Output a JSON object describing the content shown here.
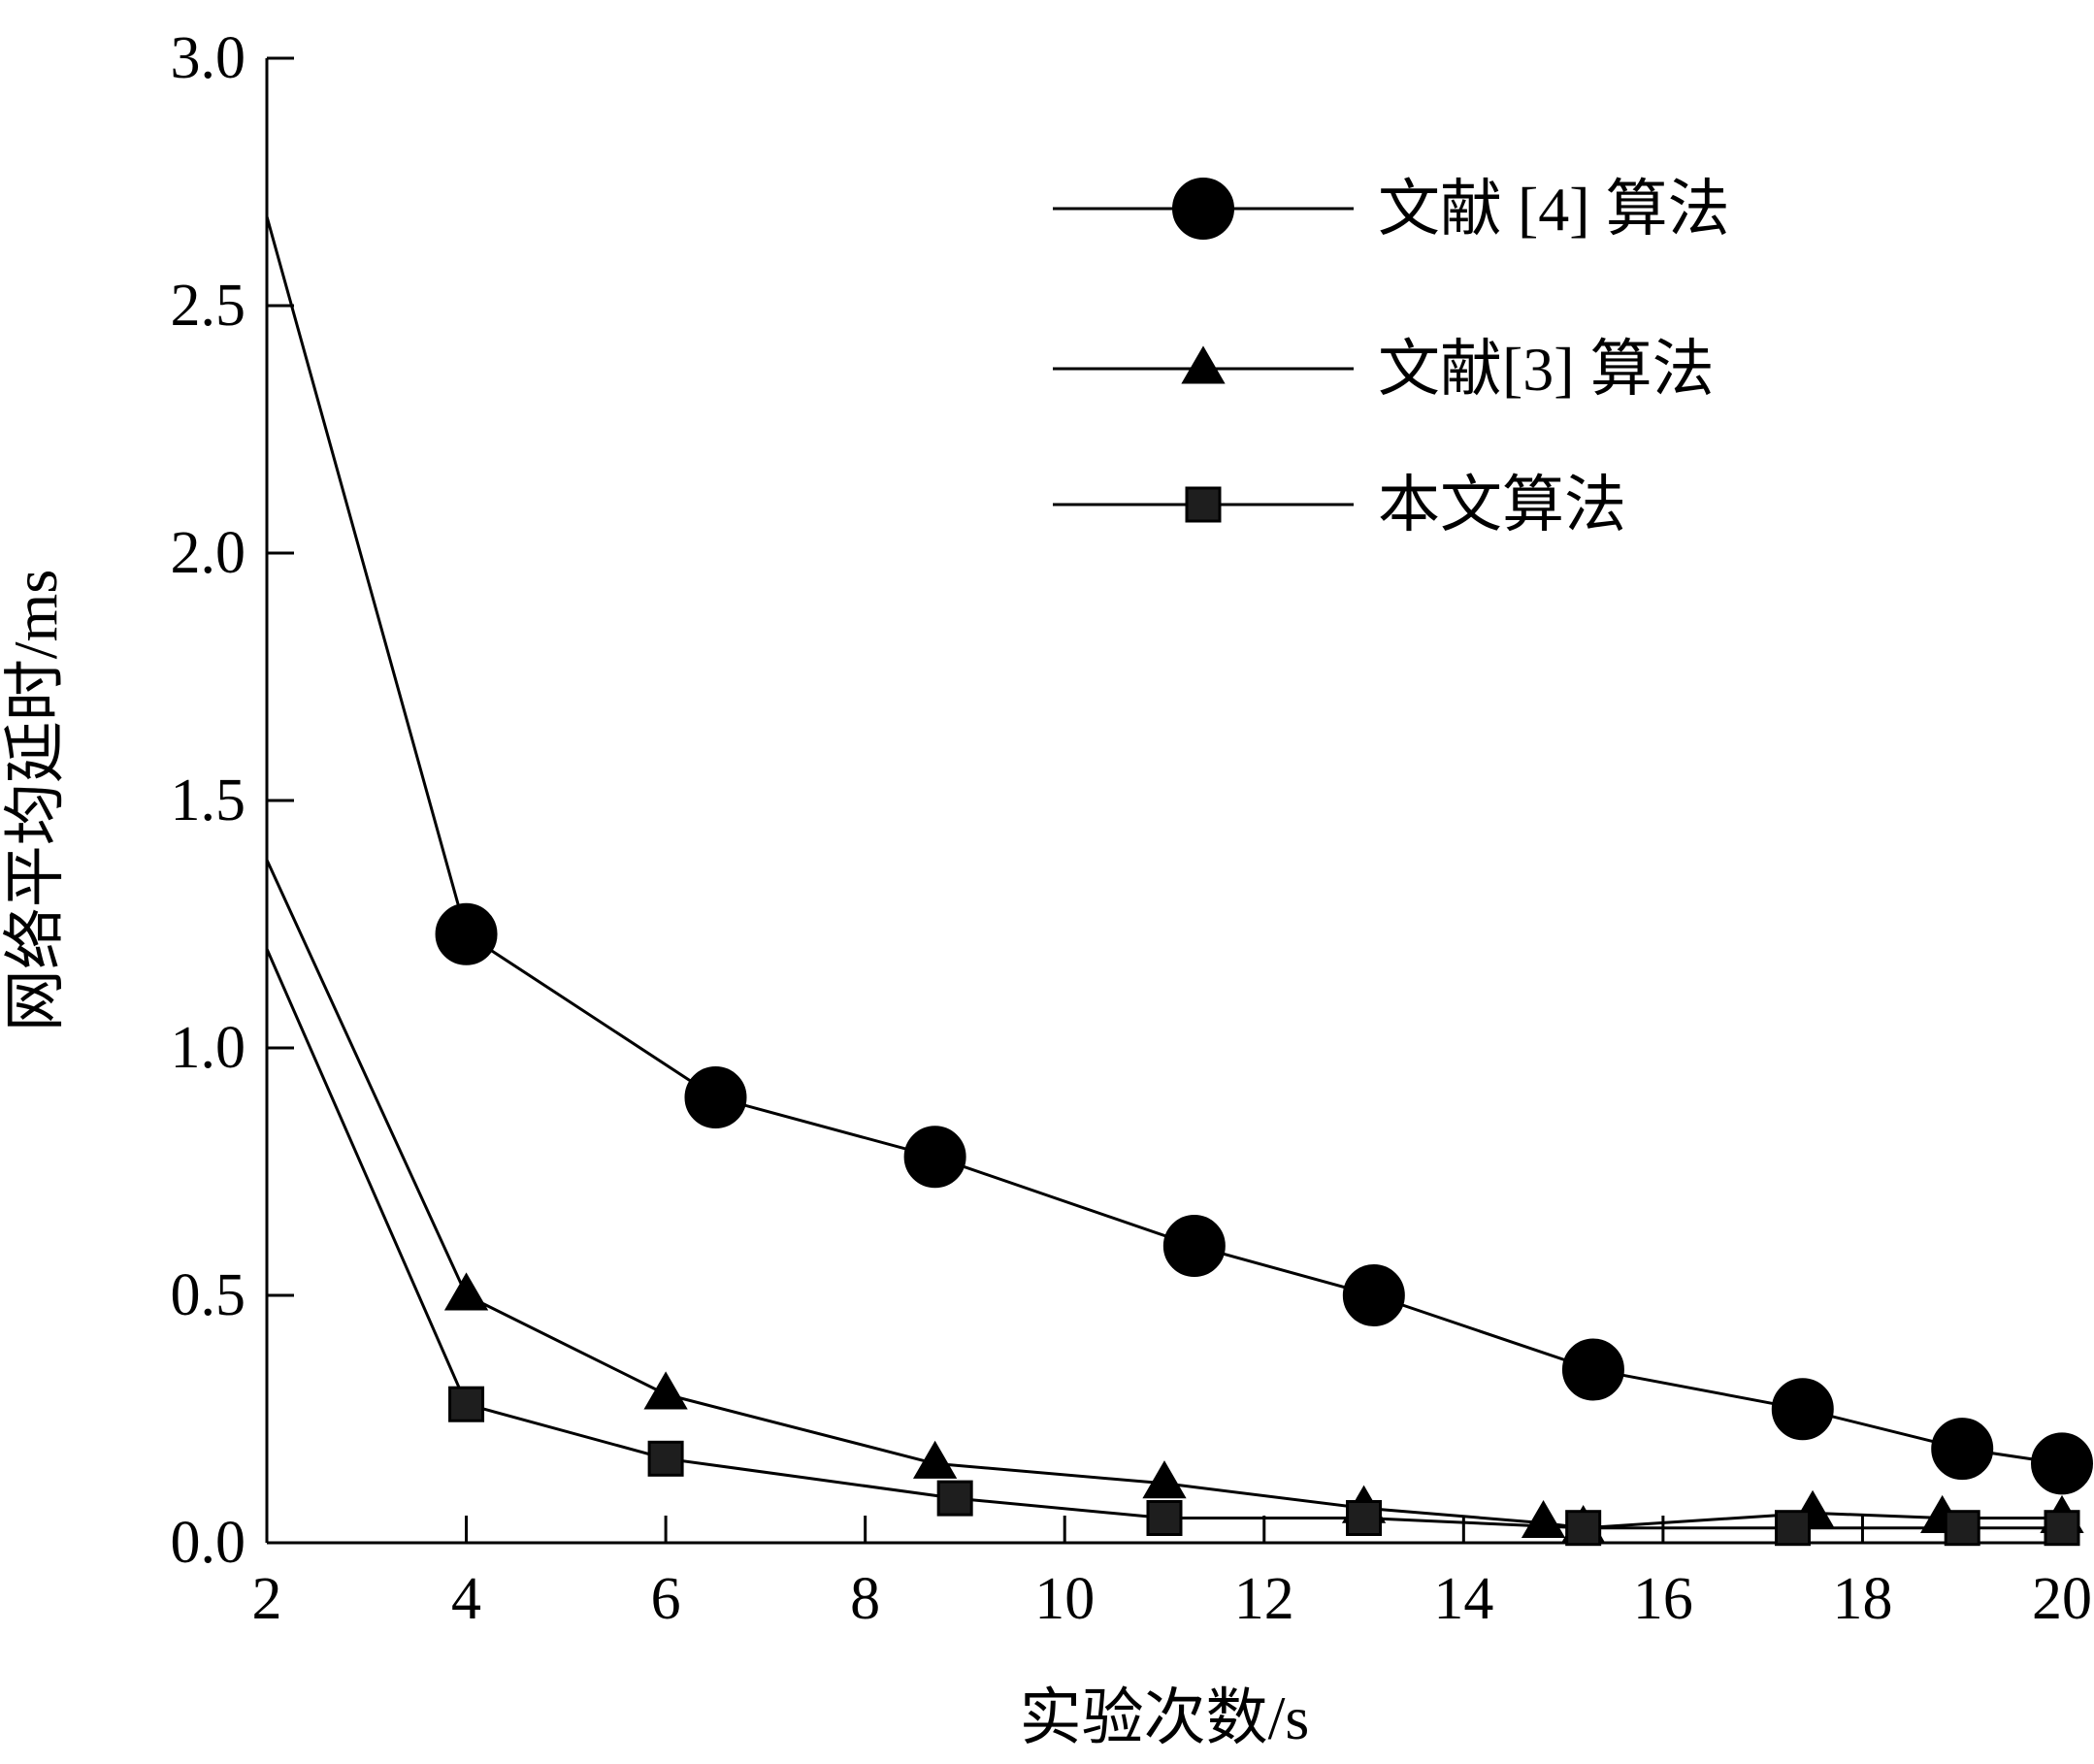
{
  "chart_data": {
    "type": "line",
    "xlabel": "实验次数/s",
    "ylabel": "网络平均延时/ms",
    "xlim": [
      2,
      20
    ],
    "ylim": [
      0,
      3.0
    ],
    "x_ticks": [
      "2",
      "4",
      "6",
      "8",
      "10",
      "12",
      "14",
      "16",
      "18",
      "20"
    ],
    "y_ticks": [
      "0.0",
      "0.5",
      "1.0",
      "1.5",
      "2.0",
      "2.5",
      "3.0"
    ],
    "grid": false,
    "legend_position": "top-right",
    "series": [
      {
        "name": "文献 [4] 算法",
        "marker": "circle",
        "color": "#000000",
        "line_start": [
          2.0,
          2.68
        ],
        "points": [
          [
            4.0,
            1.23
          ],
          [
            6.5,
            0.9
          ],
          [
            8.7,
            0.78
          ],
          [
            11.3,
            0.6
          ],
          [
            13.1,
            0.5
          ],
          [
            15.3,
            0.35
          ],
          [
            17.4,
            0.27
          ],
          [
            19.0,
            0.19
          ],
          [
            20.0,
            0.16
          ]
        ]
      },
      {
        "name": "文献[3] 算法",
        "marker": "triangle",
        "color": "#000000",
        "line_start": [
          2.0,
          1.38
        ],
        "points": [
          [
            4.0,
            0.5
          ],
          [
            6.0,
            0.3
          ],
          [
            8.7,
            0.16
          ],
          [
            11.0,
            0.12
          ],
          [
            13.0,
            0.07
          ],
          [
            14.8,
            0.04
          ],
          [
            15.2,
            0.03
          ],
          [
            17.5,
            0.06
          ],
          [
            18.8,
            0.05
          ],
          [
            20.0,
            0.05
          ]
        ]
      },
      {
        "name": "本文算法",
        "marker": "square",
        "color": "#1e1e1e",
        "line_start": [
          2.0,
          1.2
        ],
        "points": [
          [
            4.0,
            0.28
          ],
          [
            6.0,
            0.17
          ],
          [
            8.9,
            0.09
          ],
          [
            11.0,
            0.05
          ],
          [
            13.0,
            0.05
          ],
          [
            15.2,
            0.03
          ],
          [
            17.3,
            0.03
          ],
          [
            19.0,
            0.03
          ],
          [
            20.0,
            0.03
          ]
        ]
      }
    ]
  }
}
